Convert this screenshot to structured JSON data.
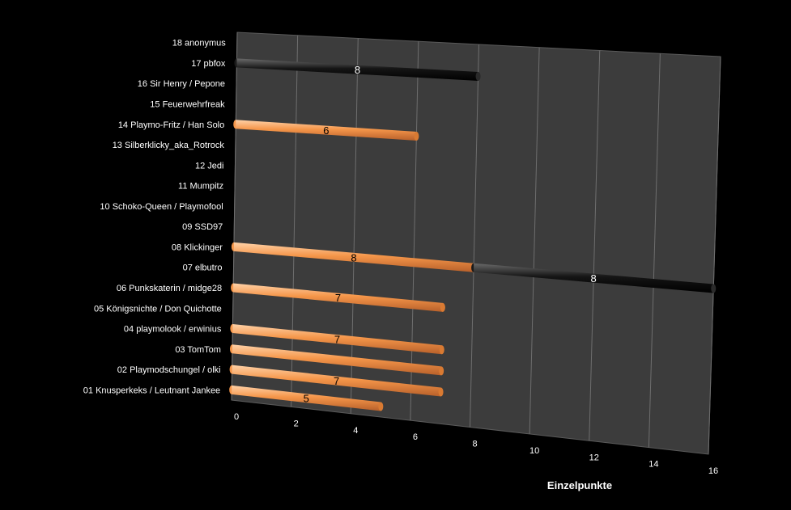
{
  "chart_data": {
    "type": "bar",
    "orientation": "horizontal",
    "stacked": true,
    "three_d": true,
    "categories": [
      "01 Knusperkeks / Leutnant Jankee",
      "02 Playmodschungel / olki",
      "03 TomTom",
      "04 playmolook / erwinius",
      "05 Königsnichte / Don Quichotte",
      "06 Punkskaterin / midge28",
      "07 elbutro",
      "08 Klickinger",
      "09 SSD97",
      "10 Schoko-Queen / Playmofool",
      "11 Mumpitz",
      "12 Jedi",
      "13 Silberklicky_aka_Rotrock",
      "14 Playmo-Fritz / Han Solo",
      "15 Feuerwehrfreak",
      "16 Sir Henry / Pepone",
      "17 pbfox",
      "18 anonymus"
    ],
    "series": [
      {
        "color": "#f5964a",
        "values": [
          5,
          7,
          7,
          7,
          0,
          7,
          0,
          8,
          0,
          0,
          0,
          0,
          0,
          6,
          0,
          0,
          0,
          0
        ]
      },
      {
        "color": "#101010",
        "values": [
          0,
          0,
          0,
          0,
          0,
          0,
          0,
          8,
          0,
          0,
          0,
          0,
          0,
          0,
          0,
          0,
          8,
          0
        ]
      }
    ],
    "data_labels": [
      {
        "category": 0,
        "series": 0,
        "text": "5"
      },
      {
        "category": 1,
        "series": 0,
        "text": "7"
      },
      {
        "category": 3,
        "series": 0,
        "text": "7"
      },
      {
        "category": 5,
        "series": 0,
        "text": "7"
      },
      {
        "category": 7,
        "series": 0,
        "text": "8"
      },
      {
        "category": 7,
        "series": 1,
        "text": "8"
      },
      {
        "category": 13,
        "series": 0,
        "text": "6"
      },
      {
        "category": 16,
        "series": 1,
        "text": "8"
      }
    ],
    "x_ticks": [
      "0",
      "2",
      "4",
      "6",
      "8",
      "10",
      "12",
      "14",
      "16"
    ],
    "xlim": [
      0,
      16
    ],
    "xlabel": "Einzelpunkte",
    "ylabel": "",
    "title": "",
    "grid": true,
    "legend": "none"
  }
}
